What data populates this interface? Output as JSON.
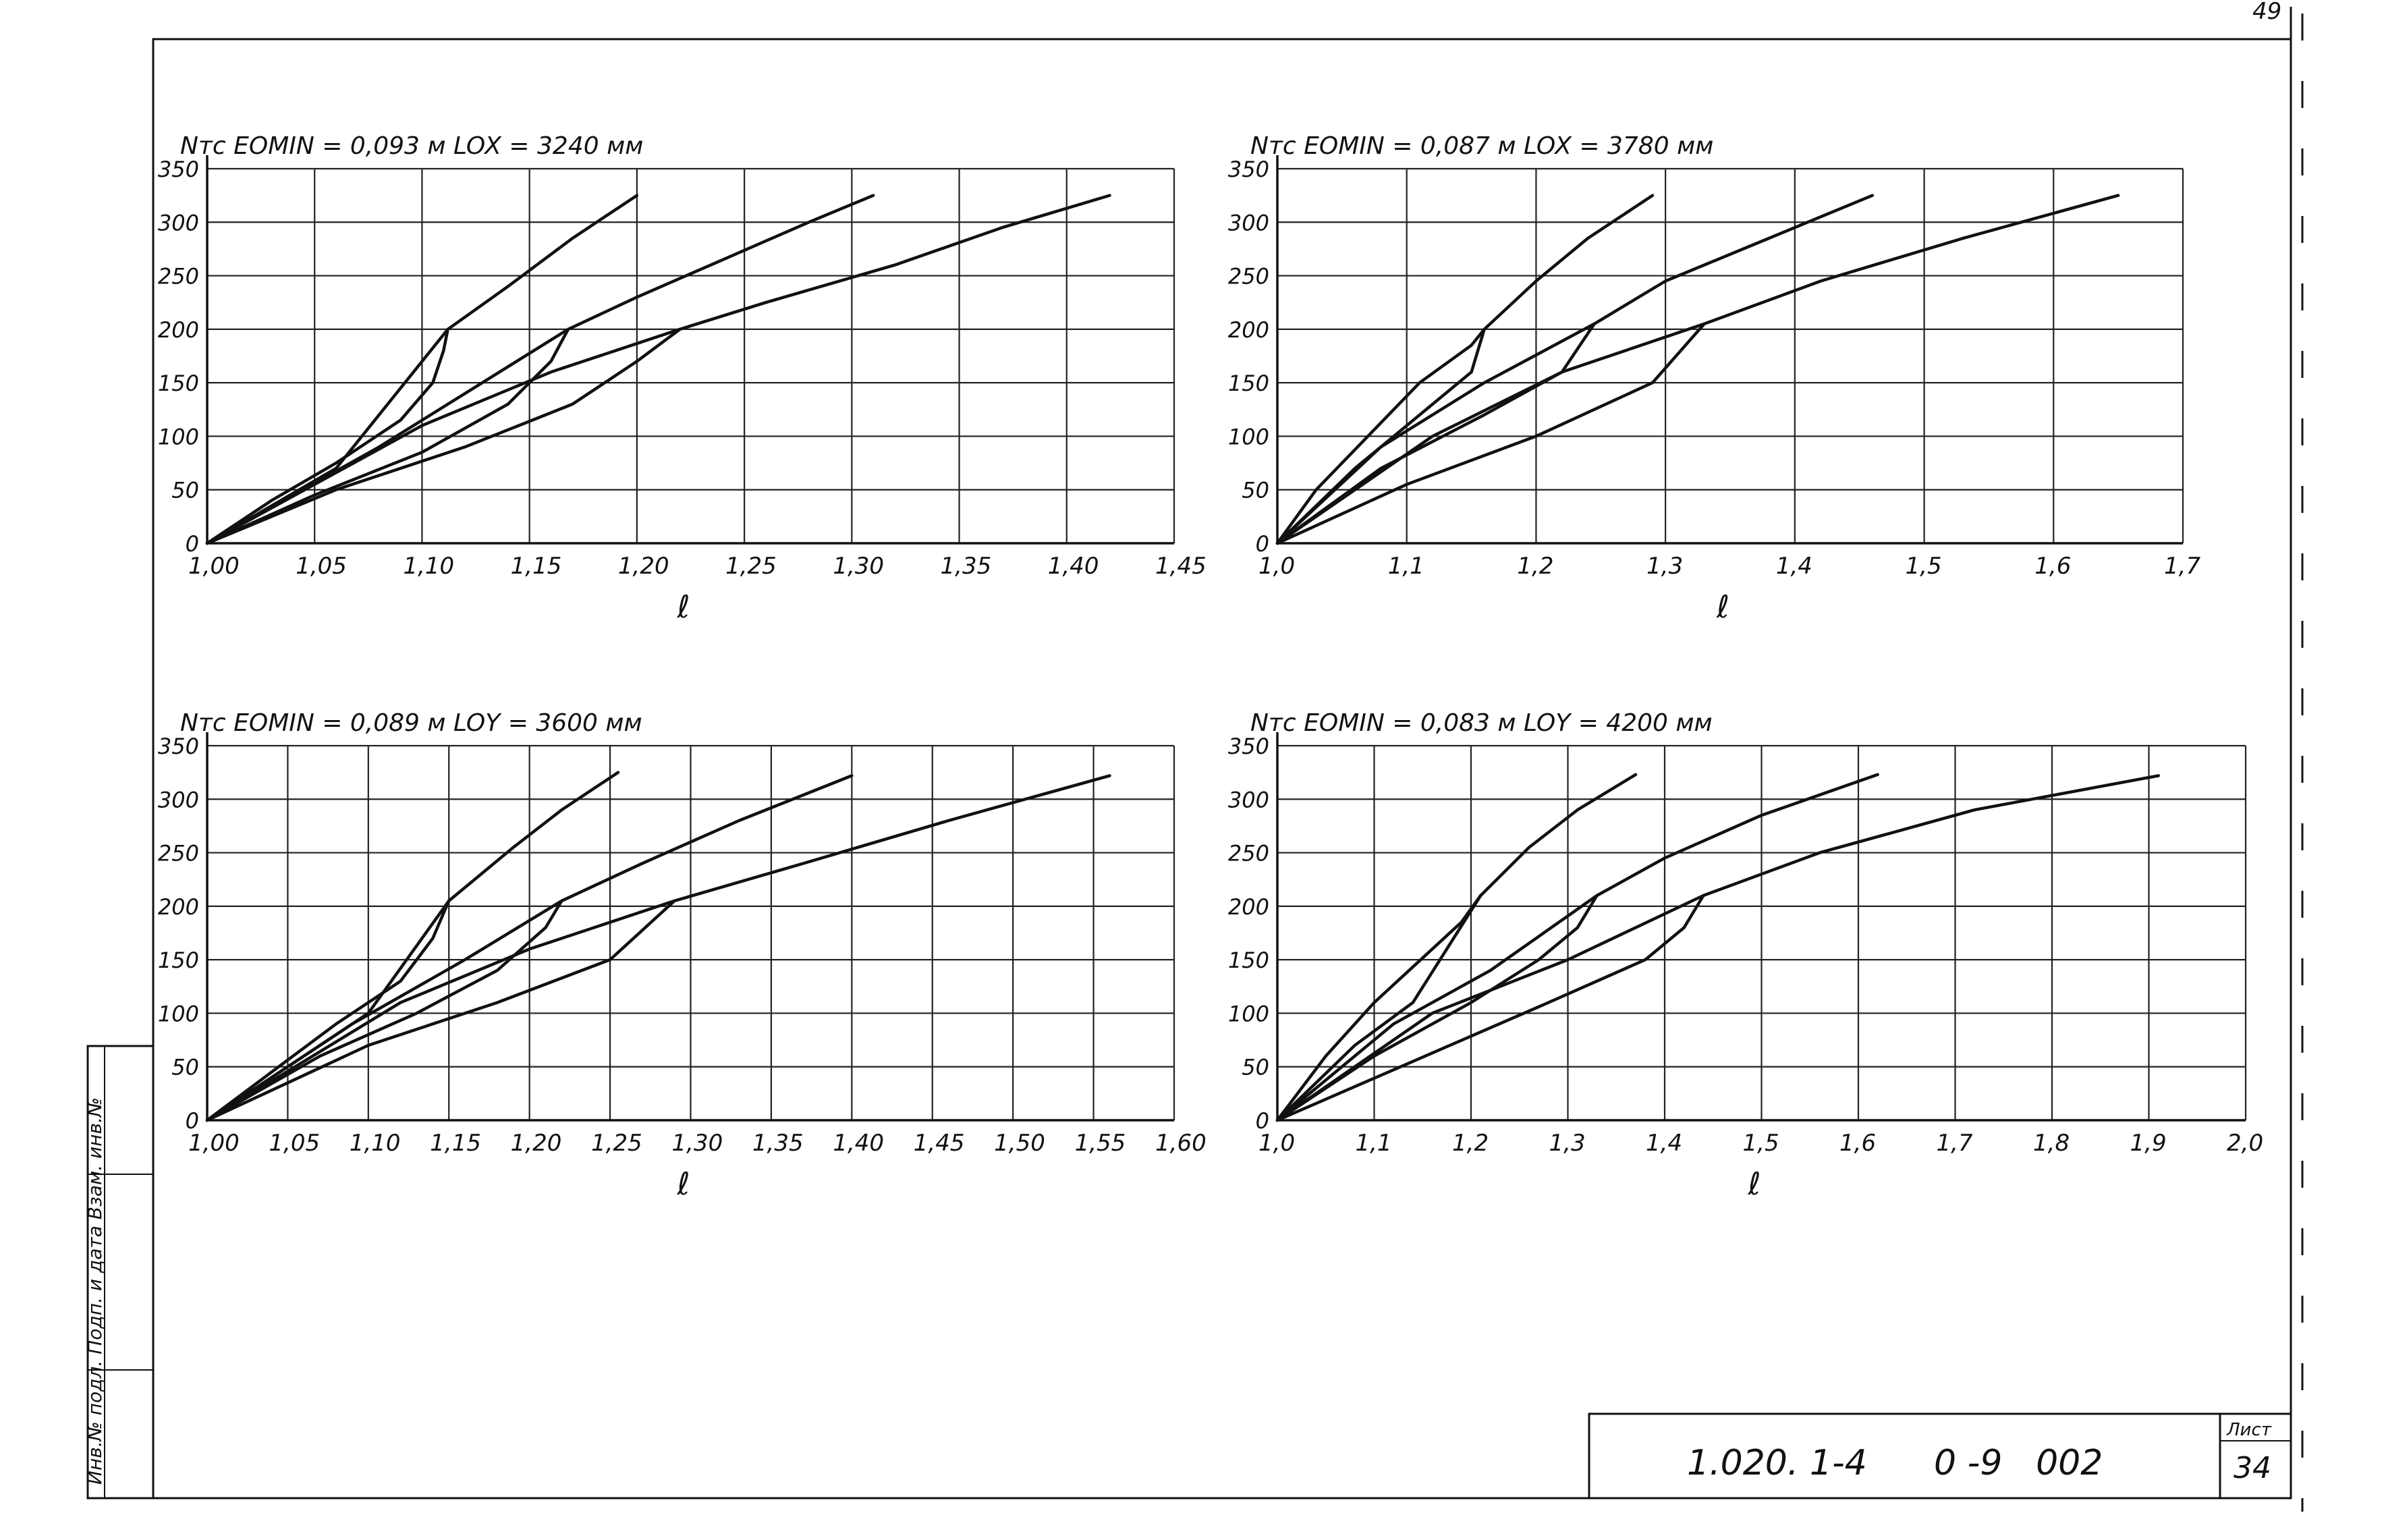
{
  "sheet": {
    "corner_number": "49",
    "designation": "1.020. 1-4      0 -9   002",
    "sheet_label": "Лист",
    "sheet_number": "34",
    "side_stamp": "Инв.№ подл.  Подп. и дата  Взам. инв.№"
  },
  "chart_data": [
    {
      "type": "line",
      "header": "Nтс  EOMIN = 0,093 м      LOX = 3240 мм",
      "ylabel": "Nтс",
      "xlabel": "ℓ",
      "x_ticks": [
        "1,00",
        "1,05",
        "1,10",
        "1,15",
        "1,20",
        "1,25",
        "1,30",
        "1,35",
        "1,40",
        "1,45"
      ],
      "y_ticks": [
        "0",
        "50",
        "100",
        "150",
        "200",
        "250",
        "300",
        "350"
      ],
      "xlim": [
        1.0,
        1.45
      ],
      "ylim": [
        0,
        350
      ],
      "grid": true,
      "series": [
        {
          "points": [
            [
              1.0,
              0
            ],
            [
              1.03,
              40
            ],
            [
              1.06,
              75
            ],
            [
              1.09,
              115
            ],
            [
              1.105,
              150
            ],
            [
              1.11,
              180
            ],
            [
              1.112,
              200
            ],
            [
              1.14,
              240
            ],
            [
              1.17,
              285
            ],
            [
              1.2,
              325
            ]
          ]
        },
        {
          "points": [
            [
              1.0,
              0
            ],
            [
              1.06,
              70
            ],
            [
              1.112,
              200
            ]
          ]
        },
        {
          "points": [
            [
              1.0,
              0
            ],
            [
              1.05,
              45
            ],
            [
              1.1,
              85
            ],
            [
              1.14,
              130
            ],
            [
              1.16,
              170
            ],
            [
              1.168,
              200
            ],
            [
              1.2,
              230
            ],
            [
              1.24,
              265
            ],
            [
              1.28,
              300
            ],
            [
              1.31,
              325
            ]
          ]
        },
        {
          "points": [
            [
              1.0,
              0
            ],
            [
              1.08,
              90
            ],
            [
              1.168,
              200
            ]
          ]
        },
        {
          "points": [
            [
              1.0,
              0
            ],
            [
              1.06,
              50
            ],
            [
              1.12,
              90
            ],
            [
              1.17,
              130
            ],
            [
              1.2,
              170
            ],
            [
              1.22,
              200
            ],
            [
              1.26,
              225
            ],
            [
              1.32,
              260
            ],
            [
              1.37,
              295
            ],
            [
              1.42,
              325
            ]
          ]
        },
        {
          "points": [
            [
              1.0,
              0
            ],
            [
              1.1,
              110
            ],
            [
              1.16,
              160
            ],
            [
              1.22,
              200
            ]
          ]
        }
      ]
    },
    {
      "type": "line",
      "header": "Nтс  EOMIN = 0,087 м      LOX = 3780 мм",
      "ylabel": "Nтс",
      "xlabel": "ℓ",
      "x_ticks": [
        "1,0",
        "1,1",
        "1,2",
        "1,3",
        "1,4",
        "1,5",
        "1,6",
        "1,7"
      ],
      "y_ticks": [
        "0",
        "50",
        "100",
        "150",
        "200",
        "250",
        "300",
        "350"
      ],
      "xlim": [
        1.0,
        1.7
      ],
      "ylim": [
        0,
        350
      ],
      "grid": true,
      "series": [
        {
          "points": [
            [
              1.0,
              0
            ],
            [
              1.03,
              50
            ],
            [
              1.07,
              100
            ],
            [
              1.11,
              150
            ],
            [
              1.15,
              185
            ],
            [
              1.16,
              200
            ],
            [
              1.2,
              245
            ],
            [
              1.24,
              285
            ],
            [
              1.29,
              325
            ]
          ]
        },
        {
          "points": [
            [
              1.0,
              0
            ],
            [
              1.06,
              70
            ],
            [
              1.12,
              130
            ],
            [
              1.15,
              160
            ],
            [
              1.16,
              200
            ]
          ]
        },
        {
          "points": [
            [
              1.0,
              0
            ],
            [
              1.08,
              70
            ],
            [
              1.16,
              120
            ],
            [
              1.22,
              160
            ],
            [
              1.245,
              205
            ],
            [
              1.3,
              245
            ],
            [
              1.37,
              280
            ],
            [
              1.46,
              325
            ]
          ]
        },
        {
          "points": [
            [
              1.0,
              0
            ],
            [
              1.08,
              90
            ],
            [
              1.16,
              150
            ],
            [
              1.245,
              205
            ]
          ]
        },
        {
          "points": [
            [
              1.0,
              0
            ],
            [
              1.1,
              55
            ],
            [
              1.2,
              100
            ],
            [
              1.29,
              150
            ],
            [
              1.33,
              205
            ],
            [
              1.42,
              245
            ],
            [
              1.53,
              285
            ],
            [
              1.65,
              325
            ]
          ]
        },
        {
          "points": [
            [
              1.0,
              0
            ],
            [
              1.12,
              100
            ],
            [
              1.22,
              160
            ],
            [
              1.33,
              205
            ]
          ]
        }
      ]
    },
    {
      "type": "line",
      "header": "Nтс  EOMIN = 0,089 м      LOY = 3600 мм",
      "ylabel": "Nтс",
      "xlabel": "ℓ",
      "x_ticks": [
        "1,00",
        "1,05",
        "1,10",
        "1,15",
        "1,20",
        "1,25",
        "1,30",
        "1,35",
        "1,40",
        "1,45",
        "1,50",
        "1,55",
        "1,60"
      ],
      "y_ticks": [
        "0",
        "50",
        "100",
        "150",
        "200",
        "250",
        "300",
        "350"
      ],
      "xlim": [
        1.0,
        1.6
      ],
      "ylim": [
        0,
        350
      ],
      "grid": true,
      "series": [
        {
          "points": [
            [
              1.0,
              0
            ],
            [
              1.04,
              45
            ],
            [
              1.08,
              90
            ],
            [
              1.12,
              130
            ],
            [
              1.14,
              170
            ],
            [
              1.15,
              205
            ],
            [
              1.19,
              255
            ],
            [
              1.22,
              290
            ],
            [
              1.255,
              325
            ]
          ]
        },
        {
          "points": [
            [
              1.0,
              0
            ],
            [
              1.06,
              60
            ],
            [
              1.1,
              100
            ],
            [
              1.15,
              205
            ]
          ]
        },
        {
          "points": [
            [
              1.0,
              0
            ],
            [
              1.07,
              60
            ],
            [
              1.13,
              100
            ],
            [
              1.18,
              140
            ],
            [
              1.21,
              180
            ],
            [
              1.22,
              205
            ],
            [
              1.27,
              240
            ],
            [
              1.33,
              280
            ],
            [
              1.4,
              322
            ]
          ]
        },
        {
          "points": [
            [
              1.0,
              0
            ],
            [
              1.09,
              90
            ],
            [
              1.16,
              150
            ],
            [
              1.22,
              205
            ]
          ]
        },
        {
          "points": [
            [
              1.0,
              0
            ],
            [
              1.1,
              70
            ],
            [
              1.18,
              110
            ],
            [
              1.25,
              150
            ],
            [
              1.29,
              205
            ],
            [
              1.37,
              240
            ],
            [
              1.46,
              280
            ],
            [
              1.56,
              322
            ]
          ]
        },
        {
          "points": [
            [
              1.0,
              0
            ],
            [
              1.12,
              110
            ],
            [
              1.2,
              160
            ],
            [
              1.29,
              205
            ]
          ]
        }
      ]
    },
    {
      "type": "line",
      "header": "Nтс  EOMIN = 0,083 м      LOY = 4200 мм",
      "ylabel": "Nтс",
      "xlabel": "ℓ",
      "x_ticks": [
        "1,0",
        "1,1",
        "1,2",
        "1,3",
        "1,4",
        "1,5",
        "1,6",
        "1,7",
        "1,8",
        "1,9",
        "2,0"
      ],
      "y_ticks": [
        "0",
        "50",
        "100",
        "150",
        "200",
        "250",
        "300",
        "350"
      ],
      "xlim": [
        1.0,
        2.0
      ],
      "ylim": [
        0,
        350
      ],
      "grid": true,
      "series": [
        {
          "points": [
            [
              1.0,
              0
            ],
            [
              1.05,
              60
            ],
            [
              1.1,
              110
            ],
            [
              1.16,
              160
            ],
            [
              1.19,
              185
            ],
            [
              1.21,
              210
            ],
            [
              1.26,
              255
            ],
            [
              1.31,
              290
            ],
            [
              1.37,
              323
            ]
          ]
        },
        {
          "points": [
            [
              1.0,
              0
            ],
            [
              1.08,
              70
            ],
            [
              1.14,
              110
            ],
            [
              1.21,
              210
            ]
          ]
        },
        {
          "points": [
            [
              1.0,
              0
            ],
            [
              1.1,
              60
            ],
            [
              1.2,
              110
            ],
            [
              1.27,
              150
            ],
            [
              1.31,
              180
            ],
            [
              1.33,
              210
            ],
            [
              1.4,
              245
            ],
            [
              1.5,
              285
            ],
            [
              1.62,
              323
            ]
          ]
        },
        {
          "points": [
            [
              1.0,
              0
            ],
            [
              1.12,
              90
            ],
            [
              1.22,
              140
            ],
            [
              1.33,
              210
            ]
          ]
        },
        {
          "points": [
            [
              1.0,
              0
            ],
            [
              1.14,
              55
            ],
            [
              1.28,
              110
            ],
            [
              1.38,
              150
            ],
            [
              1.42,
              180
            ],
            [
              1.44,
              210
            ],
            [
              1.56,
              250
            ],
            [
              1.72,
              290
            ],
            [
              1.91,
              322
            ]
          ]
        },
        {
          "points": [
            [
              1.0,
              0
            ],
            [
              1.16,
              100
            ],
            [
              1.3,
              150
            ],
            [
              1.44,
              210
            ]
          ]
        }
      ]
    }
  ]
}
